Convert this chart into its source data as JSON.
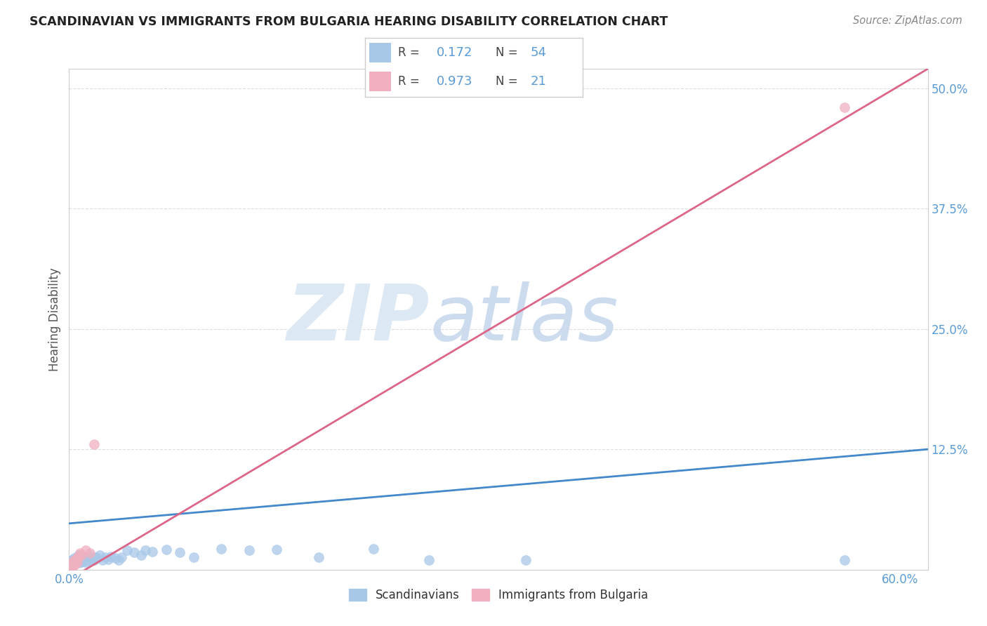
{
  "title": "SCANDINAVIAN VS IMMIGRANTS FROM BULGARIA HEARING DISABILITY CORRELATION CHART",
  "source": "Source: ZipAtlas.com",
  "ylabel": "Hearing Disability",
  "ylim": [
    0,
    0.52
  ],
  "xlim": [
    0,
    0.62
  ],
  "yticks": [
    0,
    0.125,
    0.25,
    0.375,
    0.5
  ],
  "ytick_labels": [
    "",
    "12.5%",
    "25.0%",
    "37.5%",
    "50.0%"
  ],
  "legend_blue_R": "0.172",
  "legend_blue_N": "54",
  "legend_pink_R": "0.973",
  "legend_pink_N": "21",
  "legend_label_blue": "Scandinavians",
  "legend_label_pink": "Immigrants from Bulgaria",
  "blue_scatter_color": "#a8c8e8",
  "pink_scatter_color": "#f0b0c0",
  "blue_line_color": "#4488cc",
  "pink_line_color": "#dd6688",
  "title_color": "#222222",
  "axis_label_color": "#5b9bd5",
  "grid_color": "#dddddd",
  "blue_line_start_y": 0.048,
  "blue_line_end_y": 0.125,
  "pink_line_start_y": -0.01,
  "pink_line_end_y": 0.52,
  "scandinavians_x": [
    0.002,
    0.003,
    0.004,
    0.004,
    0.005,
    0.005,
    0.006,
    0.006,
    0.007,
    0.007,
    0.007,
    0.008,
    0.008,
    0.009,
    0.009,
    0.01,
    0.01,
    0.011,
    0.011,
    0.012,
    0.012,
    0.013,
    0.013,
    0.014,
    0.015,
    0.015,
    0.016,
    0.018,
    0.019,
    0.02,
    0.022,
    0.024,
    0.026,
    0.028,
    0.03,
    0.033,
    0.036,
    0.038,
    0.042,
    0.047,
    0.052,
    0.055,
    0.06,
    0.07,
    0.08,
    0.09,
    0.11,
    0.13,
    0.15,
    0.18,
    0.22,
    0.26,
    0.33,
    0.56
  ],
  "scandinavians_y": [
    0.01,
    0.008,
    0.012,
    0.006,
    0.009,
    0.011,
    0.008,
    0.013,
    0.007,
    0.01,
    0.015,
    0.009,
    0.012,
    0.008,
    0.011,
    0.01,
    0.013,
    0.009,
    0.012,
    0.011,
    0.008,
    0.013,
    0.01,
    0.009,
    0.012,
    0.015,
    0.011,
    0.01,
    0.013,
    0.012,
    0.015,
    0.01,
    0.013,
    0.011,
    0.014,
    0.012,
    0.01,
    0.013,
    0.02,
    0.018,
    0.015,
    0.02,
    0.019,
    0.021,
    0.018,
    0.013,
    0.022,
    0.02,
    0.021,
    0.013,
    0.022,
    0.01,
    0.01,
    0.01
  ],
  "bulgaria_x": [
    0.001,
    0.001,
    0.001,
    0.002,
    0.002,
    0.002,
    0.003,
    0.003,
    0.003,
    0.004,
    0.004,
    0.005,
    0.006,
    0.006,
    0.007,
    0.008,
    0.009,
    0.012,
    0.015,
    0.018,
    0.56
  ],
  "bulgaria_y": [
    0.003,
    0.004,
    0.006,
    0.003,
    0.005,
    0.007,
    0.004,
    0.006,
    0.008,
    0.005,
    0.01,
    0.007,
    0.008,
    0.012,
    0.014,
    0.017,
    0.015,
    0.02,
    0.017,
    0.13,
    0.48
  ]
}
